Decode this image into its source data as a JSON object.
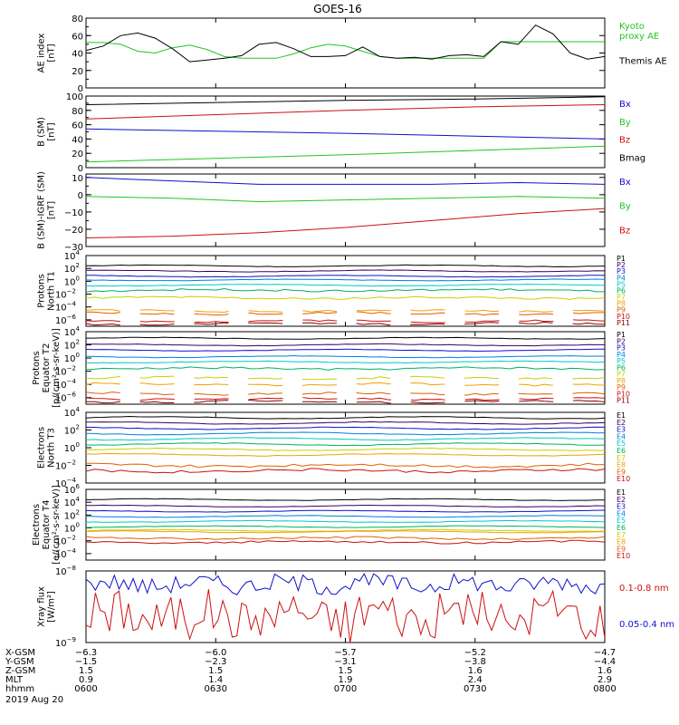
{
  "title": "GOES-16",
  "colors": {
    "black": "#000000",
    "green": "#22c522",
    "blue": "#1010cc",
    "red": "#cc1010"
  },
  "chart_data": [
    {
      "type": "line",
      "ylabel": [
        "AE index",
        "[nT]"
      ],
      "ylim": [
        0,
        80
      ],
      "yticks": [
        0,
        20,
        40,
        60,
        80
      ],
      "ytick_labels": [
        "0",
        "20",
        "40",
        "60",
        "80"
      ],
      "x": [
        0,
        4,
        8,
        12,
        16,
        20,
        24,
        28,
        32,
        36,
        40,
        44,
        48,
        52,
        56,
        60,
        64,
        68,
        72,
        76,
        80,
        84,
        88,
        92,
        96,
        100,
        104,
        108,
        112,
        116,
        120
      ],
      "series": [
        {
          "name": "Kyoto proxy AE",
          "legend_lines": [
            "Kyoto",
            "proxy AE"
          ],
          "color": "#22c522",
          "values": [
            52,
            52,
            50,
            42,
            40,
            46,
            49,
            44,
            36,
            34,
            34,
            34,
            39,
            46,
            50,
            48,
            42,
            36,
            34,
            34,
            34,
            34,
            34,
            34,
            53,
            53,
            53,
            53,
            53,
            53,
            53
          ]
        },
        {
          "name": "Themis AE",
          "legend_lines": [
            "Themis AE"
          ],
          "color": "#000000",
          "values": [
            43,
            48,
            60,
            63,
            57,
            45,
            30,
            32,
            34,
            37,
            50,
            52,
            45,
            36,
            36,
            37,
            47,
            36,
            34,
            35,
            33,
            37,
            38,
            36,
            53,
            50,
            72,
            62,
            40,
            33,
            36
          ]
        }
      ]
    },
    {
      "type": "line",
      "ylabel": [
        "B (SM)",
        "[nT]"
      ],
      "ylim": [
        0,
        100
      ],
      "yticks": [
        0,
        20,
        40,
        60,
        80,
        100
      ],
      "ytick_labels": [
        "0",
        "20",
        "40",
        "60",
        "80",
        "100"
      ],
      "x": [
        0,
        30,
        60,
        90,
        120
      ],
      "series": [
        {
          "name": "Bx",
          "legend_lines": [
            "Bx"
          ],
          "color": "#1010cc",
          "values": [
            54,
            51,
            48,
            44,
            40
          ]
        },
        {
          "name": "By",
          "legend_lines": [
            "By"
          ],
          "color": "#22c522",
          "values": [
            8,
            13,
            18,
            24,
            30
          ]
        },
        {
          "name": "Bz",
          "legend_lines": [
            "Bz"
          ],
          "color": "#cc1010",
          "values": [
            68,
            74,
            80,
            85,
            88
          ]
        },
        {
          "name": "Bmag",
          "legend_lines": [
            "Bmag"
          ],
          "color": "#000000",
          "values": [
            88,
            91,
            94,
            96,
            99
          ]
        }
      ]
    },
    {
      "type": "line",
      "ylabel": [
        "B (SM)-IGRF (SM)",
        "[nT]"
      ],
      "ylim": [
        -30,
        12
      ],
      "yticks": [
        -30,
        -20,
        -10,
        0,
        10
      ],
      "ytick_labels": [
        "−30",
        "−20",
        "−10",
        "0",
        "10"
      ],
      "x": [
        0,
        20,
        40,
        60,
        80,
        100,
        120
      ],
      "series": [
        {
          "name": "Bx",
          "legend_lines": [
            "Bx"
          ],
          "color": "#1010cc",
          "values": [
            10,
            8,
            6,
            6,
            6,
            7,
            6
          ]
        },
        {
          "name": "By",
          "legend_lines": [
            "By"
          ],
          "color": "#22c522",
          "values": [
            -1,
            -2,
            -4,
            -3,
            -2,
            -1,
            -2
          ]
        },
        {
          "name": "Bz",
          "legend_lines": [
            "Bz"
          ],
          "color": "#cc1010",
          "values": [
            -25,
            -24,
            -22,
            -19,
            -15,
            -11,
            -8
          ]
        }
      ]
    },
    {
      "type": "line",
      "log": true,
      "ylabel": [
        "Protons",
        "North T1"
      ],
      "ylim_exp": [
        -7,
        4
      ],
      "ytick_exps": [
        4,
        2,
        0,
        -2,
        -4,
        -6
      ],
      "channels": [
        {
          "name": "P1",
          "color": "#000000",
          "level": 2.4
        },
        {
          "name": "P2",
          "color": "#3a0060",
          "level": 1.6
        },
        {
          "name": "P3",
          "color": "#1010cc",
          "level": 0.8
        },
        {
          "name": "P4",
          "color": "#0080e0",
          "level": 0.2
        },
        {
          "name": "P5",
          "color": "#00c8c8",
          "level": -0.6
        },
        {
          "name": "P6",
          "color": "#00b060",
          "level": -1.4
        },
        {
          "name": "P7",
          "color": "#c8d000",
          "level": -2.6
        },
        {
          "name": "P8",
          "color": "#f0a000",
          "level": -4.6
        },
        {
          "name": "P9",
          "color": "#e06000",
          "level": -5.0
        },
        {
          "name": "P10",
          "color": "#cc1010",
          "level": -6.2
        },
        {
          "name": "P11",
          "color": "#8a0000",
          "level": -6.6
        }
      ]
    },
    {
      "type": "line",
      "log": true,
      "ylabel": [
        "Protons",
        "Equator T2",
        "[p/(cm²-s-sr-keV)]"
      ],
      "ylim_exp": [
        -7,
        4
      ],
      "ytick_exps": [
        4,
        2,
        0,
        -2,
        -4,
        -6
      ],
      "channels": [
        {
          "name": "P1",
          "color": "#000000",
          "level": 3.0
        },
        {
          "name": "P2",
          "color": "#3a0060",
          "level": 2.0
        },
        {
          "name": "P3",
          "color": "#1010cc",
          "level": 1.2
        },
        {
          "name": "P4",
          "color": "#0080e0",
          "level": 0.2
        },
        {
          "name": "P5",
          "color": "#00c8c8",
          "level": -0.6
        },
        {
          "name": "P6",
          "color": "#00b060",
          "level": -1.6
        },
        {
          "name": "P7",
          "color": "#c8d000",
          "level": -3.0
        },
        {
          "name": "P8",
          "color": "#f0a000",
          "level": -4.0
        },
        {
          "name": "P9",
          "color": "#e06000",
          "level": -5.4
        },
        {
          "name": "P10",
          "color": "#cc1010",
          "level": -6.2
        },
        {
          "name": "P11",
          "color": "#8a0000",
          "level": -6.6
        }
      ]
    },
    {
      "type": "line",
      "log": true,
      "ylabel": [
        "Electrons",
        "North T3"
      ],
      "ylim_exp": [
        -4,
        4
      ],
      "ytick_exps": [
        4,
        2,
        0,
        -2,
        -4
      ],
      "channels": [
        {
          "name": "E1",
          "color": "#000000",
          "level": 3.4
        },
        {
          "name": "E2",
          "color": "#3a0060",
          "level": 2.8
        },
        {
          "name": "E3",
          "color": "#1010cc",
          "level": 2.2
        },
        {
          "name": "E4",
          "color": "#0080e0",
          "level": 1.6
        },
        {
          "name": "E5",
          "color": "#00c8c8",
          "level": 1.0
        },
        {
          "name": "E6",
          "color": "#00b060",
          "level": 0.4
        },
        {
          "name": "E7",
          "color": "#c8d000",
          "level": -0.2
        },
        {
          "name": "E8",
          "color": "#f0a000",
          "level": -0.8
        },
        {
          "name": "E9",
          "color": "#e06000",
          "level": -2.0
        },
        {
          "name": "E10",
          "color": "#cc1010",
          "level": -2.6
        }
      ]
    },
    {
      "type": "line",
      "log": true,
      "ylabel": [
        "Electrons",
        "Equator T4",
        "[e/(cm²-s-sr-keV)]"
      ],
      "ylim_exp": [
        -5,
        6
      ],
      "ytick_exps": [
        6,
        4,
        2,
        0,
        -2,
        -4
      ],
      "channels": [
        {
          "name": "E1",
          "color": "#000000",
          "level": 4.4
        },
        {
          "name": "E2",
          "color": "#3a0060",
          "level": 3.4
        },
        {
          "name": "E3",
          "color": "#1010cc",
          "level": 2.6
        },
        {
          "name": "E4",
          "color": "#0080e0",
          "level": 1.8
        },
        {
          "name": "E5",
          "color": "#00c8c8",
          "level": 1.0
        },
        {
          "name": "E6",
          "color": "#00b060",
          "level": 0.2
        },
        {
          "name": "E7",
          "color": "#c8d000",
          "level": -0.4
        },
        {
          "name": "E8",
          "color": "#f0a000",
          "level": -0.6
        },
        {
          "name": "E9",
          "color": "#e06000",
          "level": -1.6
        },
        {
          "name": "E10",
          "color": "#cc1010",
          "level": -2.2
        }
      ]
    },
    {
      "type": "line",
      "log": true,
      "ylabel": [
        "Xray flux",
        "[W/m²]"
      ],
      "ylim_exp": [
        -9,
        -8
      ],
      "ytick_exps": [
        -8,
        -9
      ],
      "series": [
        {
          "name": "0.1-0.8 nm",
          "color": "#cc1010",
          "base": -8.6,
          "amp": 0.3
        },
        {
          "name": "0.05-0.4 nm",
          "color": "#1010cc",
          "base": -8.18,
          "amp": 0.12
        }
      ]
    }
  ],
  "xaxis": {
    "range": [
      0,
      120
    ],
    "tick_x": [
      0,
      30,
      60,
      90,
      120
    ],
    "rows": [
      {
        "label": "X-GSM",
        "values": [
          "−6.3",
          "−6.0",
          "−5.7",
          "−5.2",
          "−4.7"
        ]
      },
      {
        "label": "Y-GSM",
        "values": [
          "−1.5",
          "−2.3",
          "−3.1",
          "−3.8",
          "−4.4"
        ]
      },
      {
        "label": "Z-GSM",
        "values": [
          "1.5",
          "1.5",
          "1.5",
          "1.6",
          "1.6"
        ]
      },
      {
        "label": "MLT",
        "values": [
          "0.9",
          "1.4",
          "1.9",
          "2.4",
          "2.9"
        ]
      },
      {
        "label": "hhmm",
        "values": [
          "0600",
          "0630",
          "0700",
          "0730",
          "0800"
        ]
      }
    ],
    "date": "2019 Aug 20"
  }
}
